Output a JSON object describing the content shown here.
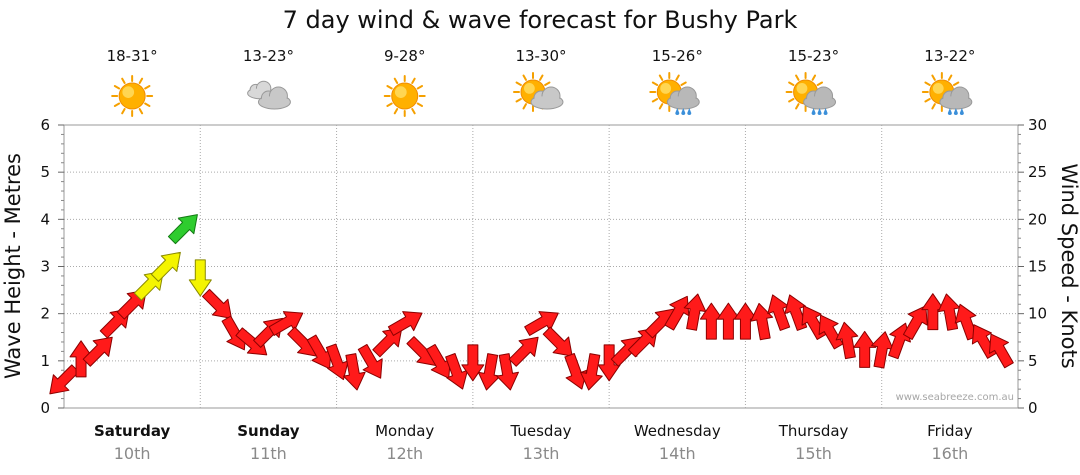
{
  "chart_data": {
    "type": "line",
    "title": "7 day wind & wave forecast for Bushy Park",
    "ylabel_left": "Wave Height - Metres",
    "ylabel_right": "Wind Speed - Knots",
    "ylim_left": [
      0,
      6
    ],
    "ylim_right": [
      0,
      30
    ],
    "yticks_left": [
      "0",
      "1",
      "2",
      "3",
      "4",
      "5",
      "6"
    ],
    "yticks_right": [
      "0",
      "5",
      "10",
      "15",
      "20",
      "25",
      "30"
    ],
    "grid": true,
    "days": [
      {
        "name": "Saturday",
        "date": "10th",
        "temp": "18-31°",
        "icon": "sunny-icon",
        "bold": true
      },
      {
        "name": "Sunday",
        "date": "11th",
        "temp": "13-23°",
        "icon": "cloudy-icon",
        "bold": true
      },
      {
        "name": "Monday",
        "date": "12th",
        "temp": "9-28°",
        "icon": "sunny-icon",
        "bold": false
      },
      {
        "name": "Tuesday",
        "date": "13th",
        "temp": "13-30°",
        "icon": "partly-cloudy-icon",
        "bold": false
      },
      {
        "name": "Wednesday",
        "date": "14th",
        "temp": "15-26°",
        "icon": "sun-showers-icon",
        "bold": false
      },
      {
        "name": "Thursday",
        "date": "15th",
        "temp": "15-23°",
        "icon": "sun-showers-icon",
        "bold": false
      },
      {
        "name": "Friday",
        "date": "16th",
        "temp": "13-22°",
        "icon": "sun-showers-icon",
        "bold": false
      }
    ],
    "series": [
      {
        "name": "Wind Speed",
        "axis": "right",
        "x_hours": [
          0,
          3,
          6,
          9,
          12,
          15,
          18,
          21,
          24,
          27,
          30,
          33,
          36,
          39,
          42,
          45,
          48,
          51,
          54,
          57,
          60,
          63,
          66,
          69,
          72,
          75,
          78,
          81,
          84,
          87,
          90,
          93,
          96,
          99,
          102,
          105,
          108,
          111,
          114,
          117,
          120,
          123,
          126,
          129,
          132,
          135,
          138,
          141,
          144,
          147,
          150,
          153,
          156,
          159,
          162,
          165
        ],
        "values": [
          3,
          5,
          6,
          9,
          11,
          13,
          15,
          19,
          14,
          11,
          8,
          7,
          8,
          9,
          7,
          6,
          5,
          4,
          5,
          7,
          9,
          6,
          5,
          4,
          5,
          4,
          4,
          6,
          9,
          7,
          4,
          4,
          5,
          6,
          7,
          9,
          10,
          10,
          9,
          9,
          9,
          9,
          10,
          10,
          9,
          8,
          7,
          6,
          6,
          7,
          9,
          10,
          10,
          9,
          7,
          6
        ],
        "directions_deg": [
          225,
          90,
          45,
          45,
          45,
          45,
          45,
          45,
          270,
          315,
          300,
          320,
          45,
          30,
          315,
          300,
          290,
          280,
          300,
          45,
          30,
          315,
          300,
          290,
          270,
          260,
          280,
          45,
          30,
          315,
          290,
          260,
          270,
          45,
          45,
          45,
          60,
          80,
          90,
          90,
          90,
          100,
          110,
          110,
          120,
          120,
          100,
          90,
          80,
          70,
          60,
          90,
          100,
          110,
          120,
          120
        ]
      }
    ]
  },
  "credit": "www.seabreeze.com.au"
}
